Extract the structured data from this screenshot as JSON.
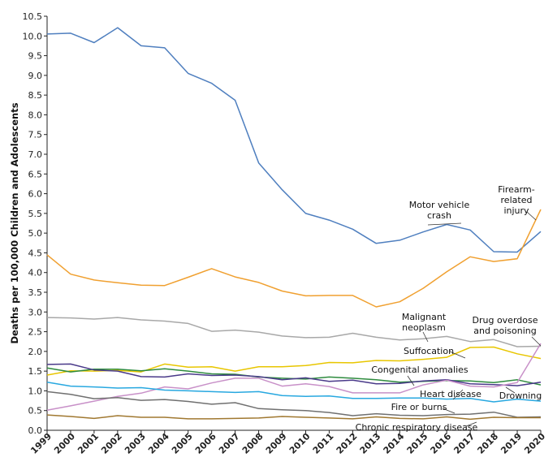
{
  "chart_data": {
    "type": "line",
    "title": "",
    "xlabel": "",
    "ylabel": "Deaths per 100,000 Children and Adolescents",
    "x": [
      "1999",
      "2000",
      "2001",
      "2002",
      "2003",
      "2004",
      "2005",
      "2006",
      "2007",
      "2008",
      "2009",
      "2010",
      "2011",
      "2012",
      "2013",
      "2014",
      "2015",
      "2016",
      "2017",
      "2018",
      "2019",
      "2020"
    ],
    "ylim": [
      0,
      10.5
    ],
    "yticks": [
      "0.0",
      "0.5",
      "1.0",
      "1.5",
      "2.0",
      "2.5",
      "3.0",
      "3.5",
      "4.0",
      "4.5",
      "5.0",
      "5.5",
      "6.0",
      "6.5",
      "7.0",
      "7.5",
      "8.0",
      "8.5",
      "9.0",
      "9.5",
      "10.0",
      "10.5"
    ],
    "grid": false,
    "legend": "none (direct labels)",
    "series": [
      {
        "name": "Motor vehicle crash",
        "color": "#4f7fbf",
        "values": [
          10.05,
          10.07,
          9.83,
          10.21,
          9.75,
          9.7,
          9.05,
          8.8,
          8.37,
          6.78,
          6.1,
          5.5,
          5.33,
          5.1,
          4.74,
          4.82,
          5.03,
          5.22,
          5.08,
          4.53,
          4.52,
          5.04
        ]
      },
      {
        "name": "Firearm-related injury",
        "color": "#f0a030",
        "values": [
          4.45,
          3.96,
          3.81,
          3.74,
          3.68,
          3.67,
          3.88,
          4.1,
          3.89,
          3.75,
          3.53,
          3.41,
          3.42,
          3.42,
          3.13,
          3.26,
          3.6,
          4.02,
          4.4,
          4.28,
          4.35,
          5.6
        ]
      },
      {
        "name": "Malignant neoplasm",
        "color": "#a8a8a8",
        "values": [
          2.86,
          2.85,
          2.82,
          2.86,
          2.8,
          2.77,
          2.71,
          2.51,
          2.54,
          2.49,
          2.39,
          2.35,
          2.36,
          2.46,
          2.36,
          2.29,
          2.32,
          2.38,
          2.25,
          2.3,
          2.12,
          2.13
        ]
      },
      {
        "name": "Suffocation",
        "color": "#e8c600",
        "values": [
          1.4,
          1.51,
          1.5,
          1.52,
          1.48,
          1.68,
          1.6,
          1.61,
          1.5,
          1.61,
          1.61,
          1.64,
          1.72,
          1.71,
          1.77,
          1.76,
          1.8,
          1.85,
          2.1,
          2.11,
          1.94,
          1.82
        ]
      },
      {
        "name": "Congenital anomalies",
        "color": "#2e8b3e",
        "values": [
          1.58,
          1.48,
          1.55,
          1.55,
          1.51,
          1.56,
          1.5,
          1.43,
          1.42,
          1.35,
          1.32,
          1.3,
          1.35,
          1.32,
          1.28,
          1.22,
          1.24,
          1.26,
          1.25,
          1.21,
          1.28,
          1.15
        ]
      },
      {
        "name": "Drowning",
        "color": "#4a3a8a",
        "values": [
          1.67,
          1.68,
          1.53,
          1.5,
          1.36,
          1.35,
          1.43,
          1.39,
          1.4,
          1.36,
          1.28,
          1.33,
          1.24,
          1.27,
          1.18,
          1.19,
          1.25,
          1.28,
          1.18,
          1.16,
          1.13,
          1.22
        ]
      },
      {
        "name": "Drug overdose and poisoning",
        "color": "#c890c8",
        "values": [
          0.51,
          0.62,
          0.74,
          0.86,
          0.94,
          1.1,
          1.05,
          1.2,
          1.32,
          1.32,
          1.12,
          1.18,
          1.11,
          0.95,
          0.95,
          0.95,
          1.15,
          1.27,
          1.12,
          1.1,
          1.21,
          2.2
        ]
      },
      {
        "name": "Heart disease",
        "color": "#28a8e0",
        "values": [
          1.22,
          1.12,
          1.1,
          1.07,
          1.08,
          1.02,
          1.0,
          0.98,
          0.96,
          0.98,
          0.88,
          0.86,
          0.87,
          0.81,
          0.81,
          0.82,
          0.82,
          0.79,
          0.81,
          0.72,
          0.79,
          0.74
        ]
      },
      {
        "name": "Fire or burns",
        "color": "#707070",
        "values": [
          0.98,
          0.91,
          0.8,
          0.83,
          0.76,
          0.78,
          0.73,
          0.66,
          0.7,
          0.55,
          0.52,
          0.5,
          0.45,
          0.37,
          0.42,
          0.38,
          0.37,
          0.4,
          0.41,
          0.46,
          0.33,
          0.34
        ]
      },
      {
        "name": "Chronic respiratory disease",
        "color": "#a07830",
        "values": [
          0.39,
          0.35,
          0.3,
          0.37,
          0.33,
          0.33,
          0.29,
          0.29,
          0.3,
          0.31,
          0.35,
          0.33,
          0.31,
          0.29,
          0.34,
          0.3,
          0.29,
          0.34,
          0.28,
          0.33,
          0.32,
          0.32
        ]
      }
    ],
    "annotations": [
      {
        "text": [
          "Motor vehicle",
          "crash"
        ],
        "series": "Motor vehicle crash"
      },
      {
        "text": [
          "Firearm-",
          "related",
          "injury"
        ],
        "series": "Firearm-related injury"
      },
      {
        "text": [
          "Malignant",
          "neoplasm"
        ],
        "series": "Malignant neoplasm"
      },
      {
        "text": [
          "Drug overdose",
          "and poisoning"
        ],
        "series": "Drug overdose and poisoning"
      },
      {
        "text": [
          "Suffocation"
        ],
        "series": "Suffocation"
      },
      {
        "text": [
          "Congenital anomalies"
        ],
        "series": "Congenital anomalies"
      },
      {
        "text": [
          "Heart disease"
        ],
        "series": "Heart disease"
      },
      {
        "text": [
          "Drowning"
        ],
        "series": "Drowning"
      },
      {
        "text": [
          "Fire or burns"
        ],
        "series": "Fire or burns"
      },
      {
        "text": [
          "Chronic respiratory disease"
        ],
        "series": "Chronic respiratory disease"
      }
    ]
  }
}
